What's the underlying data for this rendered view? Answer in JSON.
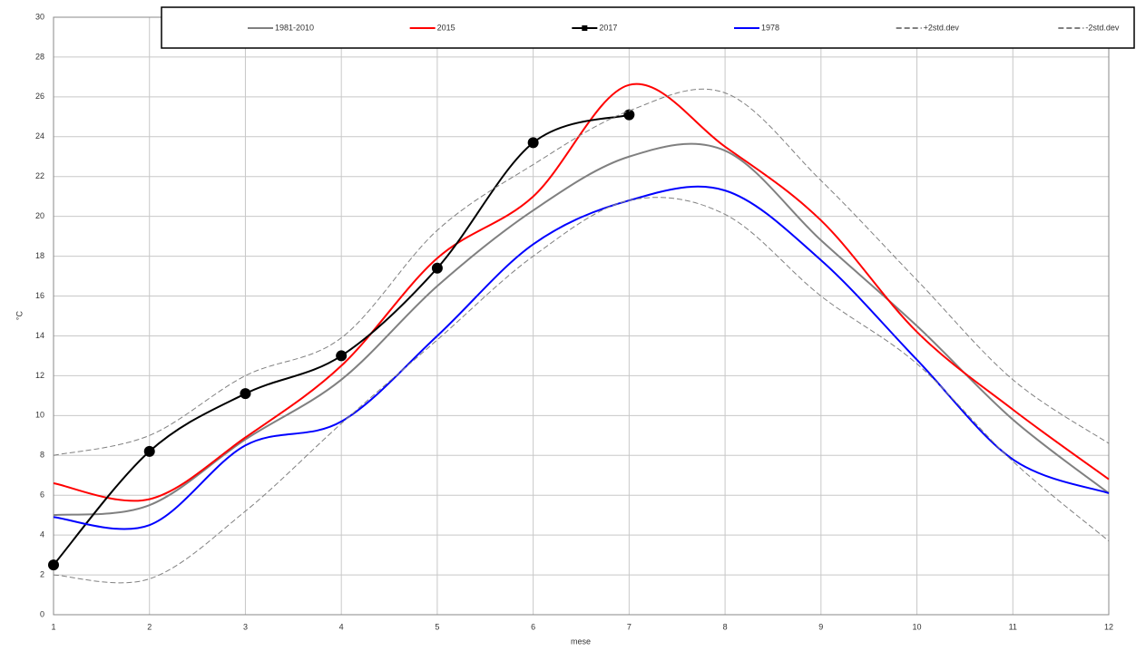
{
  "chart_data": {
    "type": "line",
    "x": [
      1,
      2,
      3,
      4,
      5,
      6,
      7,
      8,
      9,
      10,
      11,
      12
    ],
    "xlabel": "mese",
    "ylabel": "°C",
    "xlim": [
      1,
      12
    ],
    "xticks": [
      1,
      2,
      3,
      4,
      5,
      6,
      7,
      8,
      9,
      10,
      11,
      12
    ],
    "ylim": [
      0,
      30
    ],
    "yticks": [
      0,
      2,
      4,
      6,
      8,
      10,
      12,
      14,
      16,
      18,
      20,
      22,
      24,
      26,
      28,
      30
    ],
    "grid": true,
    "legend": "top",
    "series": [
      {
        "name": "1981-2010",
        "color": "#808080",
        "line_style": "solid",
        "values": [
          5.0,
          5.5,
          8.8,
          11.8,
          16.5,
          20.3,
          23.0,
          23.3,
          18.8,
          14.5,
          9.8,
          6.1
        ]
      },
      {
        "name": "2015",
        "color": "#ff0000",
        "line_style": "solid",
        "values": [
          6.6,
          5.8,
          8.9,
          12.5,
          17.9,
          21.0,
          26.6,
          23.5,
          19.8,
          14.2,
          10.3,
          6.8
        ]
      },
      {
        "name": "2017",
        "color": "#000000",
        "line_style": "solid",
        "marker": "circle",
        "values": [
          2.5,
          8.2,
          11.1,
          13.0,
          17.4,
          23.7,
          25.1,
          null,
          null,
          null,
          null,
          null
        ]
      },
      {
        "name": "1978",
        "color": "#0000ff",
        "line_style": "solid",
        "values": [
          4.9,
          4.5,
          8.5,
          9.7,
          14.0,
          18.6,
          20.8,
          21.3,
          17.8,
          12.8,
          7.8,
          6.1
        ]
      },
      {
        "name": "+2std.dev",
        "color": "#808080",
        "line_style": "dashed",
        "values": [
          8.0,
          9.0,
          12.0,
          13.9,
          19.3,
          22.6,
          25.3,
          26.2,
          21.8,
          16.8,
          11.8,
          8.6
        ]
      },
      {
        "name": "-2std.dev",
        "color": "#808080",
        "line_style": "dashed",
        "values": [
          2.0,
          1.8,
          5.2,
          9.6,
          13.8,
          18.0,
          20.8,
          20.1,
          16.0,
          12.6,
          7.7,
          3.7
        ]
      }
    ]
  }
}
